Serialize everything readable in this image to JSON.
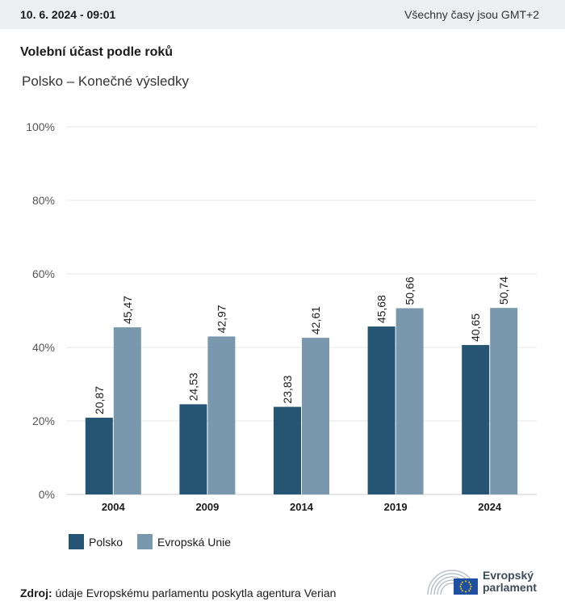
{
  "header": {
    "datetime": "10. 6. 2024 - 09:01",
    "timezone_note": "Všechny časy jsou GMT+2"
  },
  "title": "Volební účast podle roků",
  "subtitle": "Polsko – Konečné výsledky",
  "chart_data": {
    "type": "bar",
    "categories": [
      "2004",
      "2009",
      "2014",
      "2019",
      "2024"
    ],
    "series": [
      {
        "name": "Polsko",
        "values": [
          20.87,
          24.53,
          23.83,
          45.68,
          40.65
        ],
        "labels": [
          "20,87",
          "24,53",
          "23,83",
          "45,68",
          "40,65"
        ],
        "color": "#265473"
      },
      {
        "name": "Evropská Unie",
        "values": [
          45.47,
          42.97,
          42.61,
          50.66,
          50.74
        ],
        "labels": [
          "45,47",
          "42,97",
          "42,61",
          "50,66",
          "50,74"
        ],
        "color": "#7a98ad"
      }
    ],
    "yticks": [
      "0%",
      "20%",
      "40%",
      "60%",
      "80%",
      "100%"
    ],
    "ylim": [
      0,
      100
    ],
    "grid": true,
    "legend_position": "bottom-left"
  },
  "legend": [
    {
      "label": "Polsko",
      "color": "#265473"
    },
    {
      "label": "Evropská Unie",
      "color": "#7a98ad"
    }
  ],
  "source": {
    "label": "Zdroj:",
    "text": "údaje Evropskému parlamentu poskytla agentura Verian"
  },
  "logo": {
    "line1": "Evropský",
    "line2": "parlament"
  }
}
